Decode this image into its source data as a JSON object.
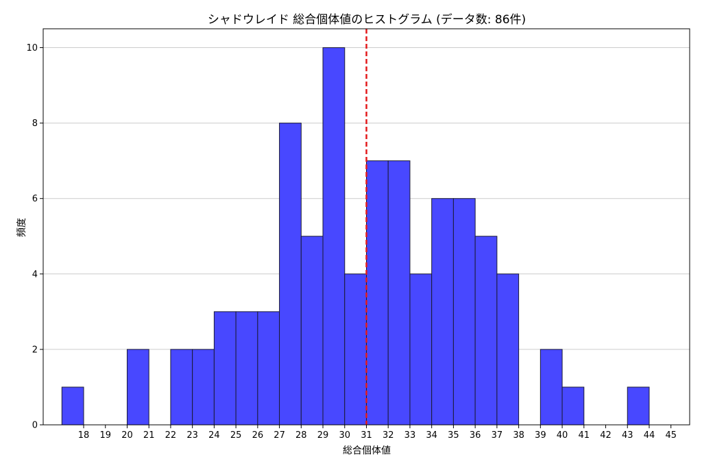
{
  "chart_data": {
    "type": "bar",
    "title": "シャドウレイド 総合個体値のヒストグラム (データ数: 86件)",
    "xlabel": "総合個体値",
    "ylabel": "頻度",
    "x_ticks": [
      18,
      19,
      20,
      21,
      22,
      23,
      24,
      25,
      26,
      27,
      28,
      29,
      30,
      31,
      32,
      33,
      34,
      35,
      36,
      37,
      38,
      39,
      40,
      41,
      42,
      43,
      44,
      45
    ],
    "y_ticks": [
      0,
      2,
      4,
      6,
      8,
      10
    ],
    "xlim": [
      16.14,
      45.86
    ],
    "ylim": [
      0,
      10.5
    ],
    "bins": [
      {
        "start": 17.0,
        "end": 18.0,
        "count": 1
      },
      {
        "start": 18.0,
        "end": 19.0,
        "count": 0
      },
      {
        "start": 19.0,
        "end": 20.0,
        "count": 0
      },
      {
        "start": 20.0,
        "end": 21.0,
        "count": 2
      },
      {
        "start": 21.0,
        "end": 22.0,
        "count": 0
      },
      {
        "start": 22.0,
        "end": 23.0,
        "count": 2
      },
      {
        "start": 23.0,
        "end": 24.0,
        "count": 2
      },
      {
        "start": 24.0,
        "end": 25.0,
        "count": 3
      },
      {
        "start": 25.0,
        "end": 26.0,
        "count": 3
      },
      {
        "start": 26.0,
        "end": 27.0,
        "count": 3
      },
      {
        "start": 27.0,
        "end": 28.0,
        "count": 8
      },
      {
        "start": 28.0,
        "end": 29.0,
        "count": 5
      },
      {
        "start": 29.0,
        "end": 30.0,
        "count": 10
      },
      {
        "start": 30.0,
        "end": 31.0,
        "count": 4
      },
      {
        "start": 31.0,
        "end": 32.0,
        "count": 7
      },
      {
        "start": 32.0,
        "end": 33.0,
        "count": 7
      },
      {
        "start": 33.0,
        "end": 34.0,
        "count": 4
      },
      {
        "start": 34.0,
        "end": 35.0,
        "count": 6
      },
      {
        "start": 35.0,
        "end": 36.0,
        "count": 6
      },
      {
        "start": 36.0,
        "end": 37.0,
        "count": 5
      },
      {
        "start": 37.0,
        "end": 38.0,
        "count": 4
      },
      {
        "start": 38.0,
        "end": 39.0,
        "count": 0
      },
      {
        "start": 39.0,
        "end": 40.0,
        "count": 2
      },
      {
        "start": 40.0,
        "end": 41.0,
        "count": 1
      },
      {
        "start": 41.0,
        "end": 42.0,
        "count": 0
      },
      {
        "start": 42.0,
        "end": 43.0,
        "count": 0
      },
      {
        "start": 43.0,
        "end": 44.0,
        "count": 1
      }
    ],
    "reference_line": {
      "x": 31.0,
      "style": "dashed",
      "color": "#e31a1c"
    },
    "grid": "horizontal",
    "colors": {
      "bar_fill": "#4848ff",
      "bar_edge": "#1a1a33",
      "grid": "#cccccc"
    }
  }
}
